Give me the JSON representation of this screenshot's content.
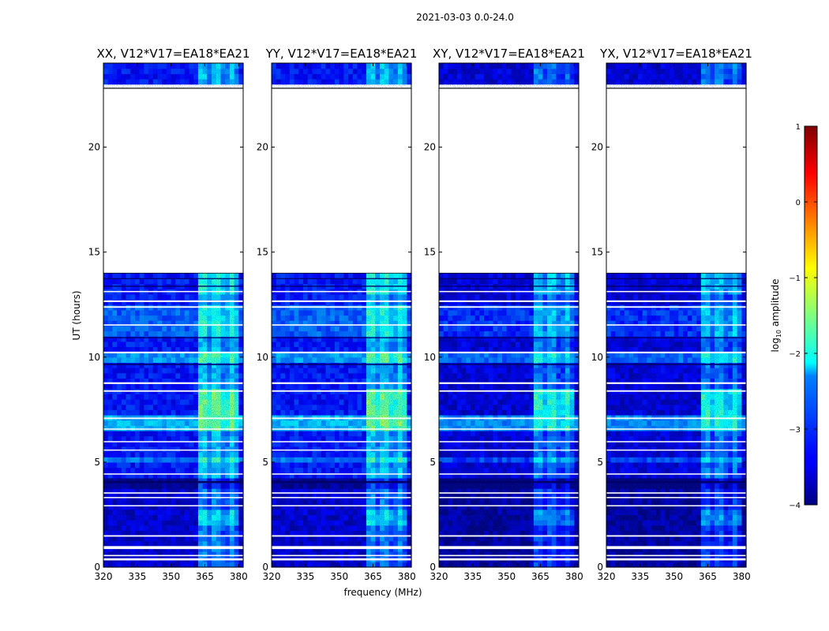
{
  "figure": {
    "suptitle": "2021-03-03 0.0-24.0"
  },
  "chart_data": [
    {
      "type": "heatmap",
      "title": "XX, V12*V17=EA18*EA21",
      "xlabel": "",
      "ylabel": "UT (hours)",
      "xlim": [
        320,
        382
      ],
      "ylim": [
        0,
        24
      ],
      "xticks": [
        "320",
        "335",
        "350",
        "365",
        "380"
      ],
      "yticks": [
        "0",
        "5",
        "10",
        "15",
        "20"
      ],
      "data_gap_hours": [
        [
          14.0,
          22.8
        ]
      ]
    },
    {
      "type": "heatmap",
      "title": "YY, V12*V17=EA18*EA21",
      "xlabel": "frequency (MHz)",
      "ylabel": "",
      "xlim": [
        320,
        382
      ],
      "ylim": [
        0,
        24
      ],
      "xticks": [
        "320",
        "335",
        "350",
        "365",
        "380"
      ],
      "yticks": [
        "0",
        "5",
        "10",
        "15",
        "20"
      ],
      "data_gap_hours": [
        [
          14.0,
          22.8
        ]
      ]
    },
    {
      "type": "heatmap",
      "title": "XY, V12*V17=EA18*EA21",
      "xlabel": "",
      "ylabel": "",
      "xlim": [
        320,
        382
      ],
      "ylim": [
        0,
        24
      ],
      "xticks": [
        "320",
        "335",
        "350",
        "365",
        "380"
      ],
      "yticks": [
        "0",
        "5",
        "10",
        "15",
        "20"
      ],
      "data_gap_hours": [
        [
          14.0,
          22.8
        ]
      ]
    },
    {
      "type": "heatmap",
      "title": "YX, V12*V17=EA18*EA21",
      "xlabel": "",
      "ylabel": "",
      "xlim": [
        320,
        382
      ],
      "ylim": [
        0,
        24
      ],
      "xticks": [
        "320",
        "335",
        "350",
        "365",
        "380"
      ],
      "yticks": [
        "0",
        "5",
        "10",
        "15",
        "20"
      ],
      "data_gap_hours": [
        [
          14.0,
          22.8
        ]
      ]
    }
  ],
  "colorbar": {
    "label_prefix": "log",
    "label_sub": "10",
    "label_suffix": " amplitude",
    "range": [
      -4,
      1
    ],
    "ticks": [
      "1",
      "0",
      "−1",
      "−2",
      "−3",
      "−4"
    ],
    "cmap": "jet"
  }
}
